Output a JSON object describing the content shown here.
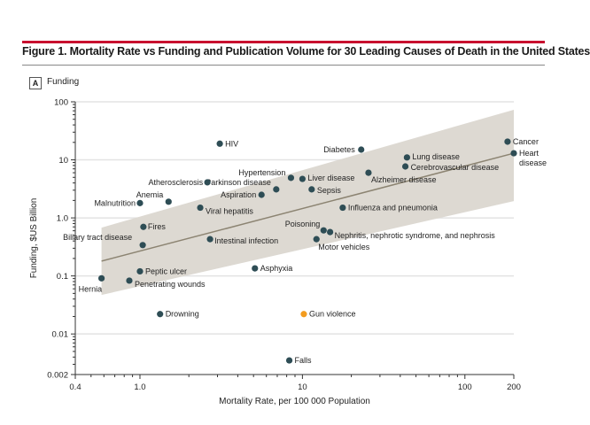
{
  "figure_title": "Figure 1. Mortality Rate vs Funding and Publication Volume for 30 Leading Causes of Death in the United States",
  "panel": {
    "letter": "A",
    "title": "Funding"
  },
  "colors": {
    "accent_rule": "#c8102e",
    "point": "#2e4d55",
    "highlight": "#f39c1f",
    "band": "#ddd9d2",
    "fit_line": "#8c8472",
    "grid": "#e3e3e3"
  },
  "chart_data": {
    "type": "scatter",
    "title": "Funding",
    "xlabel": "Mortality Rate, per 100 000 Population",
    "ylabel": "Funding, $US Billion",
    "xscale": "log",
    "yscale": "log",
    "xlim": [
      0.4,
      200
    ],
    "ylim": [
      0.002,
      100
    ],
    "xticks": [
      {
        "v": 0.4,
        "label": "0.4"
      },
      {
        "v": 1,
        "label": "1.0"
      },
      {
        "v": 10,
        "label": "10"
      },
      {
        "v": 100,
        "label": "100"
      },
      {
        "v": 200,
        "label": "200"
      }
    ],
    "yticks": [
      {
        "v": 0.002,
        "label": "0.002"
      },
      {
        "v": 0.01,
        "label": "0.01"
      },
      {
        "v": 0.1,
        "label": "0.1"
      },
      {
        "v": 1,
        "label": "1.0"
      },
      {
        "v": 10,
        "label": "10"
      },
      {
        "v": 100,
        "label": "100"
      }
    ],
    "grid": "horizontal at decades",
    "regression": {
      "x": [
        0.58,
        200
      ],
      "y": [
        0.18,
        13
      ],
      "ci_lower": [
        0.047,
        1.95
      ],
      "ci_upper": [
        0.68,
        73
      ]
    },
    "points": [
      {
        "name": "Cancer",
        "x": 183,
        "y": 20.6
      },
      {
        "name": "Heart disease",
        "x": 200,
        "y": 13
      },
      {
        "name": "Diabetes",
        "x": 23,
        "y": 15
      },
      {
        "name": "Lung disease",
        "x": 44,
        "y": 11
      },
      {
        "name": "Cerebrovascular disease",
        "x": 43,
        "y": 7.7
      },
      {
        "name": "Alzheimer disease",
        "x": 25.5,
        "y": 6
      },
      {
        "name": "Liver disease",
        "x": 10,
        "y": 4.7
      },
      {
        "name": "Hypertension",
        "x": 8.5,
        "y": 4.9
      },
      {
        "name": "Parkinson disease",
        "x": 6.9,
        "y": 3.1
      },
      {
        "name": "Aspiration",
        "x": 5.6,
        "y": 2.5
      },
      {
        "name": "Sepsis",
        "x": 11.4,
        "y": 3.1
      },
      {
        "name": "Influenza and pneumonia",
        "x": 17.7,
        "y": 1.5
      },
      {
        "name": "Atherosclerosis",
        "x": 2.6,
        "y": 4.1
      },
      {
        "name": "HIV",
        "x": 3.1,
        "y": 19
      },
      {
        "name": "Anemia",
        "x": 1.5,
        "y": 1.9
      },
      {
        "name": "Malnutrition",
        "x": 1.0,
        "y": 1.8
      },
      {
        "name": "Viral hepatitis",
        "x": 2.35,
        "y": 1.5
      },
      {
        "name": "Fires",
        "x": 1.05,
        "y": 0.7
      },
      {
        "name": "Biliary tract disease",
        "x": 1.04,
        "y": 0.34
      },
      {
        "name": "Intestinal infection",
        "x": 2.7,
        "y": 0.43
      },
      {
        "name": "Poisoning",
        "x": 13.5,
        "y": 0.61
      },
      {
        "name": "Nephritis, nephrotic syndrome, and nephrosis",
        "x": 14.8,
        "y": 0.57
      },
      {
        "name": "Motor vehicles",
        "x": 12.2,
        "y": 0.43
      },
      {
        "name": "Asphyxia",
        "x": 5.1,
        "y": 0.135
      },
      {
        "name": "Peptic ulcer",
        "x": 1.0,
        "y": 0.12
      },
      {
        "name": "Penetrating wounds",
        "x": 0.86,
        "y": 0.083
      },
      {
        "name": "Hernia",
        "x": 0.58,
        "y": 0.091
      },
      {
        "name": "Drowning",
        "x": 1.33,
        "y": 0.022
      },
      {
        "name": "Gun violence",
        "x": 10.2,
        "y": 0.022,
        "highlight": true
      },
      {
        "name": "Falls",
        "x": 8.3,
        "y": 0.0035
      }
    ]
  }
}
